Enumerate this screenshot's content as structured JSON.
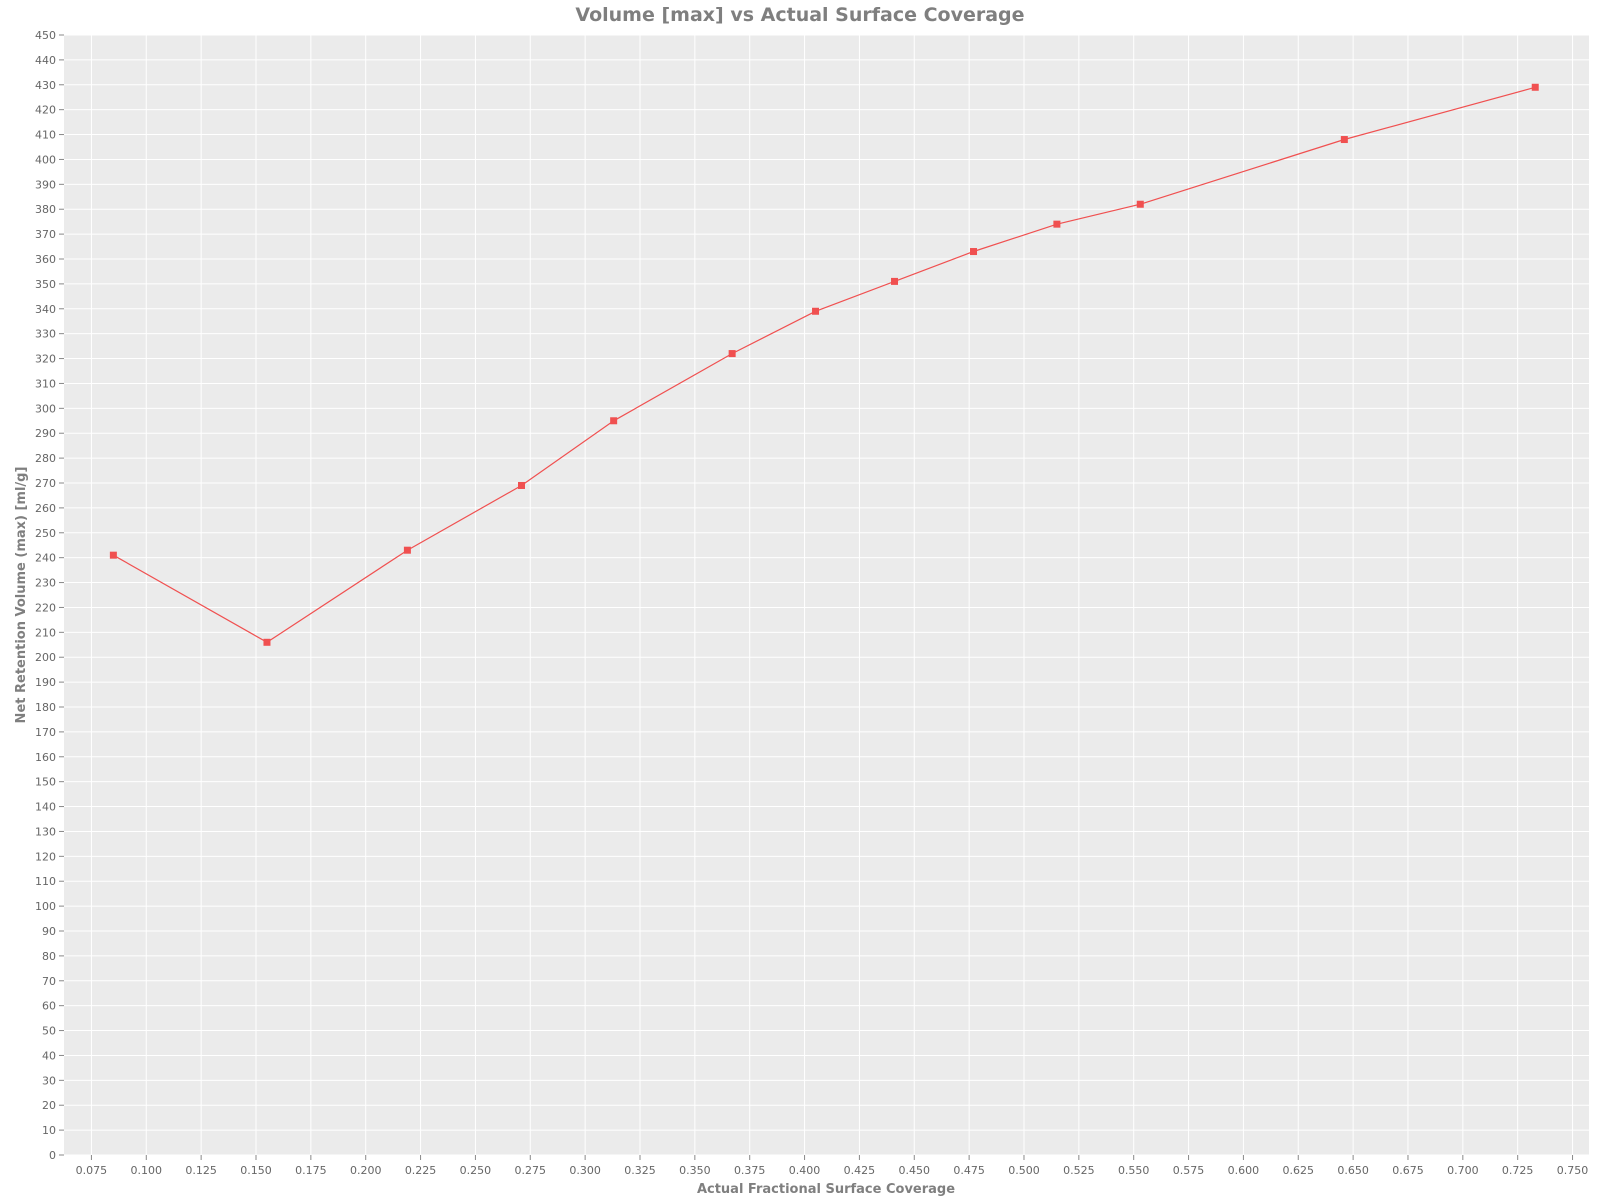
{
  "chart_data": {
    "type": "line",
    "title": "Volume [max] vs Actual Surface Coverage",
    "xlabel": "Actual Fractional Surface Coverage",
    "ylabel": "Net Retention Volume (max) [ml/g]",
    "xlim": [
      0.0625,
      0.7575
    ],
    "ylim": [
      0,
      450
    ],
    "x_ticks": [
      "0.075",
      "0.100",
      "0.125",
      "0.150",
      "0.175",
      "0.200",
      "0.225",
      "0.250",
      "0.275",
      "0.300",
      "0.325",
      "0.350",
      "0.375",
      "0.400",
      "0.425",
      "0.450",
      "0.475",
      "0.500",
      "0.525",
      "0.550",
      "0.575",
      "0.600",
      "0.625",
      "0.650",
      "0.675",
      "0.700",
      "0.725",
      "0.750"
    ],
    "y_tick_step": 10,
    "grid": true,
    "legend": "none",
    "marker": "square",
    "series": [
      {
        "color": "#f05050",
        "x": [
          0.085,
          0.155,
          0.219,
          0.271,
          0.313,
          0.367,
          0.405,
          0.441,
          0.477,
          0.515,
          0.553,
          0.646,
          0.733
        ],
        "y": [
          241,
          206,
          243,
          269,
          295,
          322,
          339,
          351,
          363,
          374,
          382,
          408,
          429
        ]
      }
    ]
  }
}
